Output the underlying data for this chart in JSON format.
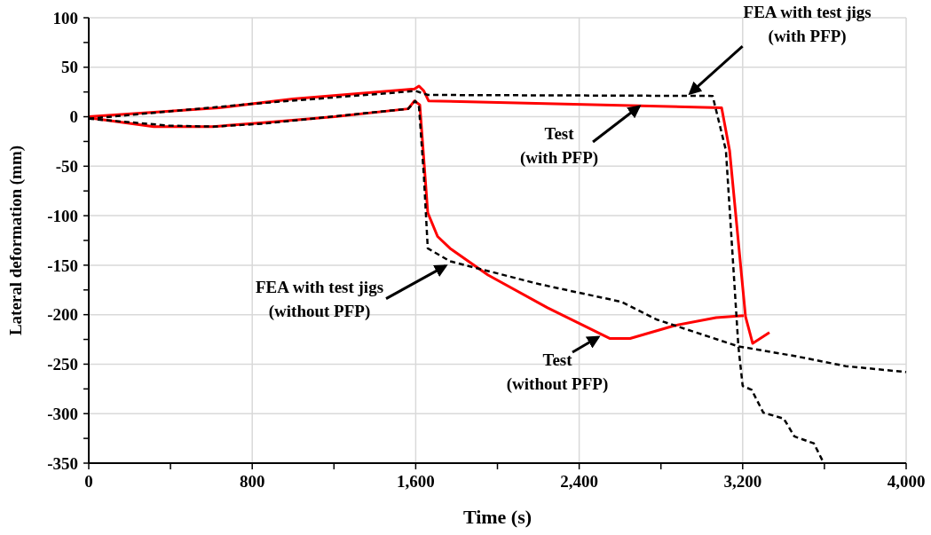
{
  "chart_data": {
    "type": "line",
    "xlabel": "Time (s)",
    "ylabel": "Lateral deformation (mm)",
    "xlim": [
      0,
      4000
    ],
    "ylim": [
      -350,
      100
    ],
    "xticks": [
      0,
      {
        "value": 400,
        "label": null
      },
      800,
      {
        "value": 1200,
        "label": null
      },
      {
        "value": 1600,
        "label": "1,600"
      },
      {
        "value": 2000,
        "label": null
      },
      {
        "value": 2400,
        "label": "2,400"
      },
      {
        "value": 2800,
        "label": null
      },
      {
        "value": 3200,
        "label": "3,200"
      },
      {
        "value": 3600,
        "label": null
      },
      {
        "value": 4000,
        "label": "4,000"
      }
    ],
    "yticks": [
      -350,
      {
        "value": -325,
        "label": null
      },
      -300,
      {
        "value": -275,
        "label": null
      },
      -250,
      {
        "value": -225,
        "label": null
      },
      -200,
      {
        "value": -175,
        "label": null
      },
      -150,
      {
        "value": -125,
        "label": null
      },
      -100,
      {
        "value": -75,
        "label": null
      },
      -50,
      {
        "value": -25,
        "label": null
      },
      0,
      {
        "value": 25,
        "label": null
      },
      50,
      {
        "value": 75,
        "label": null
      },
      100
    ],
    "grid": true,
    "series": [
      {
        "color": "#ff0000",
        "line_style": "solid",
        "x": [
          0,
          318,
          608,
          856,
          1203,
          1563,
          1594,
          1620,
          1659,
          1707,
          1768,
          1954,
          2245,
          2549,
          2649,
          2866,
          3070,
          3205
        ],
        "values": [
          -1,
          -10,
          -10,
          -6,
          0,
          8,
          16,
          12,
          -97,
          -121,
          -133,
          -160,
          -193,
          -224,
          -224,
          -211,
          -203,
          -201
        ]
      },
      {
        "color": "#ff0000",
        "line_style": "solid",
        "x": [
          0,
          637,
          999,
          1594,
          1616,
          1640,
          1663,
          3097,
          3136,
          3214,
          3249,
          3331
        ],
        "values": [
          0,
          9,
          18,
          28,
          31,
          26,
          16,
          9,
          -34,
          -202,
          -229,
          -218
        ]
      },
      {
        "color": "#000000",
        "line_style": "dashed",
        "x": [
          0,
          391,
          608,
          856,
          1563,
          1598,
          1616,
          1640,
          1659,
          1768,
          2201,
          2606,
          2780,
          3179,
          3461,
          3705,
          4000
        ],
        "values": [
          -2,
          -9,
          -10,
          -7,
          8,
          16,
          10,
          -60,
          -133,
          -146,
          -169,
          -187,
          -205,
          -232,
          -242,
          -252,
          -258
        ]
      },
      {
        "color": "#000000",
        "line_style": "dashed",
        "x": [
          0,
          800,
          1600,
          1660,
          3053,
          3118,
          3179,
          3200,
          3244,
          3301,
          3401,
          3453,
          3548,
          3597
        ],
        "values": [
          -2,
          13,
          26,
          22,
          21,
          -34,
          -232,
          -272,
          -276,
          -299,
          -305,
          -323,
          -330,
          -350
        ]
      }
    ],
    "annotations": [
      {
        "text": "FEA with test jigs\n(with PFP)",
        "x": 2930,
        "y": 21
      },
      {
        "text": "Test\n(with PFP)",
        "x": 2706,
        "y": 13
      },
      {
        "text": "FEA with test jigs\n(without PFP)",
        "x": 1759,
        "y": -148
      },
      {
        "text": "Test\n(without PFP)",
        "x": 2506,
        "y": -220
      }
    ]
  }
}
